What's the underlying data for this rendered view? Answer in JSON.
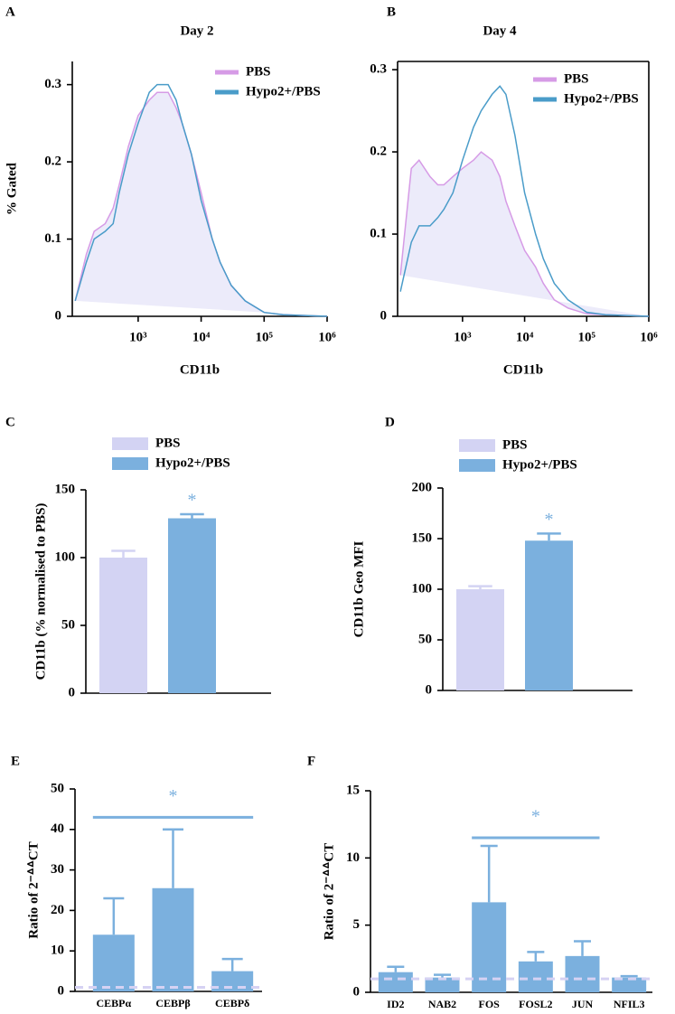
{
  "chart_data": [
    {
      "type": "line",
      "panel": "A",
      "title": "Day 2",
      "ylabel": "% Gated",
      "xlabel": "CD11b",
      "xscale": "log",
      "x": [
        100,
        150,
        200,
        300,
        400,
        500,
        700,
        1000,
        1500,
        2000,
        3000,
        4000,
        5000,
        7000,
        10000,
        15000,
        20000,
        30000,
        50000,
        100000,
        200000,
        1000000
      ],
      "xlim": [
        90,
        1000000
      ],
      "xticks": [
        {
          "value": 1000,
          "label": "10³"
        },
        {
          "value": 10000,
          "label": "10⁴"
        },
        {
          "value": 100000,
          "label": "10⁵"
        },
        {
          "value": 1000000,
          "label": "10⁶"
        }
      ],
      "ylim": [
        0,
        0.33
      ],
      "yticks": [
        0,
        0.1,
        0.2,
        0.3
      ],
      "series": [
        {
          "name": "PBS",
          "color": "#d69be6",
          "fill": "#ecebfa",
          "values": [
            0.02,
            0.08,
            0.11,
            0.12,
            0.14,
            0.17,
            0.22,
            0.26,
            0.28,
            0.29,
            0.29,
            0.27,
            0.25,
            0.21,
            0.16,
            0.1,
            0.07,
            0.04,
            0.02,
            0.005,
            0.002,
            0
          ]
        },
        {
          "name": "Hypo2+/PBS",
          "color": "#4a9cc9",
          "values": [
            0.02,
            0.07,
            0.1,
            0.11,
            0.12,
            0.16,
            0.21,
            0.25,
            0.29,
            0.3,
            0.3,
            0.28,
            0.25,
            0.21,
            0.15,
            0.1,
            0.07,
            0.04,
            0.02,
            0.005,
            0.002,
            0
          ]
        }
      ]
    },
    {
      "type": "line",
      "panel": "B",
      "title": "Day 4",
      "xlabel": "CD11b",
      "xscale": "log",
      "frame": true,
      "x": [
        100,
        150,
        200,
        300,
        400,
        500,
        700,
        1000,
        1500,
        2000,
        3000,
        4000,
        5000,
        7000,
        10000,
        15000,
        20000,
        30000,
        50000,
        100000,
        200000,
        1000000
      ],
      "xlim": [
        90,
        1000000
      ],
      "xticks": [
        {
          "value": 1000,
          "label": "10³"
        },
        {
          "value": 10000,
          "label": "10⁴"
        },
        {
          "value": 100000,
          "label": "10⁵"
        },
        {
          "value": 1000000,
          "label": "10⁶"
        }
      ],
      "ylim": [
        0,
        0.31
      ],
      "yticks": [
        0,
        0.1,
        0.2,
        0.3
      ],
      "series": [
        {
          "name": "PBS",
          "color": "#d69be6",
          "fill": "#ecebfa",
          "values": [
            0.05,
            0.18,
            0.19,
            0.17,
            0.16,
            0.16,
            0.17,
            0.18,
            0.19,
            0.2,
            0.19,
            0.17,
            0.14,
            0.11,
            0.08,
            0.06,
            0.04,
            0.02,
            0.01,
            0.003,
            0.002,
            0
          ]
        },
        {
          "name": "Hypo2+/PBS",
          "color": "#4a9cc9",
          "values": [
            0.03,
            0.09,
            0.11,
            0.11,
            0.12,
            0.13,
            0.15,
            0.19,
            0.23,
            0.25,
            0.27,
            0.28,
            0.27,
            0.22,
            0.15,
            0.1,
            0.07,
            0.04,
            0.02,
            0.005,
            0.002,
            0
          ]
        }
      ]
    },
    {
      "type": "bar",
      "panel": "C",
      "ylabel": "CD11b  (% normalised to PBS)",
      "categories": [
        null
      ],
      "ylim": [
        0,
        150
      ],
      "yticks": [
        0,
        50,
        100,
        150
      ],
      "series": [
        {
          "name": "PBS",
          "color": "#d3d3f3",
          "values": [
            100
          ],
          "errors": [
            5
          ]
        },
        {
          "name": "Hypo2+/PBS",
          "color": "#7bb0de",
          "values": [
            129
          ],
          "errors": [
            3
          ]
        }
      ],
      "annotations": [
        {
          "text": "*",
          "series": 1,
          "index": 0
        }
      ]
    },
    {
      "type": "bar",
      "panel": "D",
      "ylabel": "CD11b Geo MFI",
      "categories": [
        null
      ],
      "ylim": [
        0,
        200
      ],
      "yticks": [
        0,
        50,
        100,
        150,
        200
      ],
      "series": [
        {
          "name": "PBS",
          "color": "#d3d3f3",
          "values": [
            100
          ],
          "errors": [
            3
          ]
        },
        {
          "name": "Hypo2+/PBS",
          "color": "#7bb0de",
          "values": [
            148
          ],
          "errors": [
            7
          ]
        }
      ],
      "annotations": [
        {
          "text": "*",
          "series": 1,
          "index": 0
        }
      ]
    },
    {
      "type": "bar",
      "panel": "E",
      "ylabel": "Ratio of 2⁻ᐞᐞCT",
      "categories": [
        "CEBPα",
        "CEBPβ",
        "CEBPδ"
      ],
      "ylim": [
        0,
        50
      ],
      "yticks": [
        0,
        10,
        20,
        30,
        40,
        50
      ],
      "series": [
        {
          "color": "#7bb0de",
          "values": [
            14,
            25.5,
            5
          ],
          "errors": [
            9,
            14.5,
            3
          ]
        }
      ],
      "reference_line": 1,
      "reference_color": "#d6d2f3",
      "significance": {
        "text": "*",
        "y": 43,
        "from": 0,
        "to": 2
      }
    },
    {
      "type": "bar",
      "panel": "F",
      "ylabel": "Ratio of 2⁻ᐞᐞCT",
      "categories": [
        "ID2",
        "NAB2",
        "FOS",
        "FOSL2",
        "JUN",
        "NFIL3"
      ],
      "ylim": [
        0,
        15
      ],
      "yticks": [
        0,
        5,
        10,
        15
      ],
      "series": [
        {
          "color": "#7bb0de",
          "values": [
            1.5,
            1.1,
            6.7,
            2.3,
            2.7,
            1.1
          ],
          "errors": [
            0.4,
            0.2,
            4.2,
            0.7,
            1.1,
            0.1
          ]
        }
      ],
      "reference_line": 1,
      "reference_color": "#d6d2f3",
      "significance": {
        "text": "*",
        "y": 11.5,
        "from": 2,
        "to": 4
      }
    }
  ]
}
